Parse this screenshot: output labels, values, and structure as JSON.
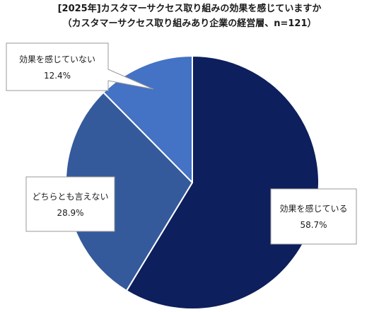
{
  "chart_data": {
    "type": "pie",
    "title": "[2025年]カスタマーサクセス取り組みの効果を感じていますか",
    "subtitle": "（カスタマーサクセス取り組みあり企業の経営層、n=121）",
    "slices": [
      {
        "label": "効果を感じている",
        "value": 58.7,
        "value_label": "58.7%",
        "color": "#0d1f5c"
      },
      {
        "label": "どちらとも言えない",
        "value": 28.9,
        "value_label": "28.9%",
        "color": "#345a9c"
      },
      {
        "label": "効果を感じていない",
        "value": 12.4,
        "value_label": "12.4%",
        "color": "#4472c4"
      }
    ],
    "start_angle": "12 o'clock",
    "direction": "clockwise",
    "legend": "none",
    "labels": "callout boxes"
  }
}
